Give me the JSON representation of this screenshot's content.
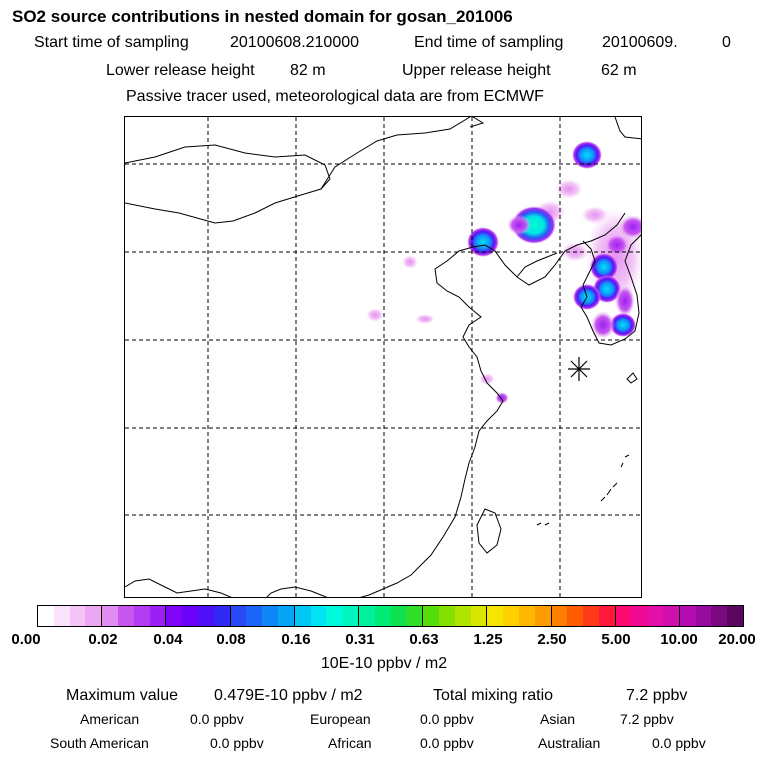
{
  "header": {
    "title": "SO2 source contributions in nested domain for gosan_201006",
    "start_label": "Start time of sampling",
    "start_value": "20100608.210000",
    "end_label": "End time of sampling",
    "end_value": "20100609.",
    "end_extra": "0",
    "lower_label": "Lower release height",
    "lower_value": "82 m",
    "upper_label": "Upper release height",
    "upper_value": "62 m",
    "note": "Passive tracer used, meteorological data are from ECMWF"
  },
  "colorbar": {
    "colors": [
      "#ffffff",
      "#fbe3fb",
      "#f4c4f6",
      "#eba7f2",
      "#e18cf0",
      "#c856ee",
      "#b23cf1",
      "#9c1ff5",
      "#8105f9",
      "#6a04f8",
      "#4e10f7",
      "#3329f5",
      "#2a49f6",
      "#1b66f6",
      "#0d86f6",
      "#05a6f6",
      "#00c6f6",
      "#00e4f4",
      "#00fade",
      "#00f6be",
      "#00f29c",
      "#00ea76",
      "#0de14e",
      "#30dd28",
      "#58dd0c",
      "#84e000",
      "#b0e300",
      "#d8e700",
      "#f6e500",
      "#ffd100",
      "#ffb800",
      "#ff9d00",
      "#ff7e00",
      "#ff5c00",
      "#ff3a18",
      "#ff1a3c",
      "#fc0b73",
      "#ef0c93",
      "#e20fa8",
      "#cf10af",
      "#b40cb0",
      "#970aa0",
      "#7a087f",
      "#5c065f"
    ],
    "ticks": [
      "0.00",
      "0.02",
      "0.04",
      "0.08",
      "0.16",
      "0.31",
      "0.63",
      "1.25",
      "2.50",
      "5.00",
      "10.00",
      "20.00"
    ],
    "units": "10E-10 ppbv / m2"
  },
  "stats": {
    "max_label": "Maximum value",
    "max_value": "0.479E-10 ppbv / m2",
    "total_label": "Total mixing ratio",
    "total_value": "7.2 ppbv",
    "regions": [
      {
        "name": "American",
        "value": "0.0 ppbv"
      },
      {
        "name": "European",
        "value": "0.0 ppbv"
      },
      {
        "name": "Asian",
        "value": "7.2 ppbv"
      },
      {
        "name": "South American",
        "value": "0.0 ppbv"
      },
      {
        "name": "African",
        "value": "0.0 ppbv"
      },
      {
        "name": "Australian",
        "value": "0.0 ppbv"
      }
    ]
  },
  "map": {
    "gridlines": "dashed",
    "source_marker": "asterisk-star",
    "plumes": [
      {
        "name": "north-hotspot",
        "level": "0.16"
      },
      {
        "name": "beijing-tianjin-hotspot",
        "level": "0.31"
      },
      {
        "name": "bohai-hotspot",
        "level": "0.16"
      },
      {
        "name": "korea-north-hotspot",
        "level": "0.16"
      },
      {
        "name": "seoul-hotspot",
        "level": "0.16"
      },
      {
        "name": "korea-east-hotspot",
        "level": "0.08"
      },
      {
        "name": "korea-south-hotspot",
        "level": "0.16"
      },
      {
        "name": "shanghai-spot",
        "level": "0.04"
      }
    ]
  }
}
